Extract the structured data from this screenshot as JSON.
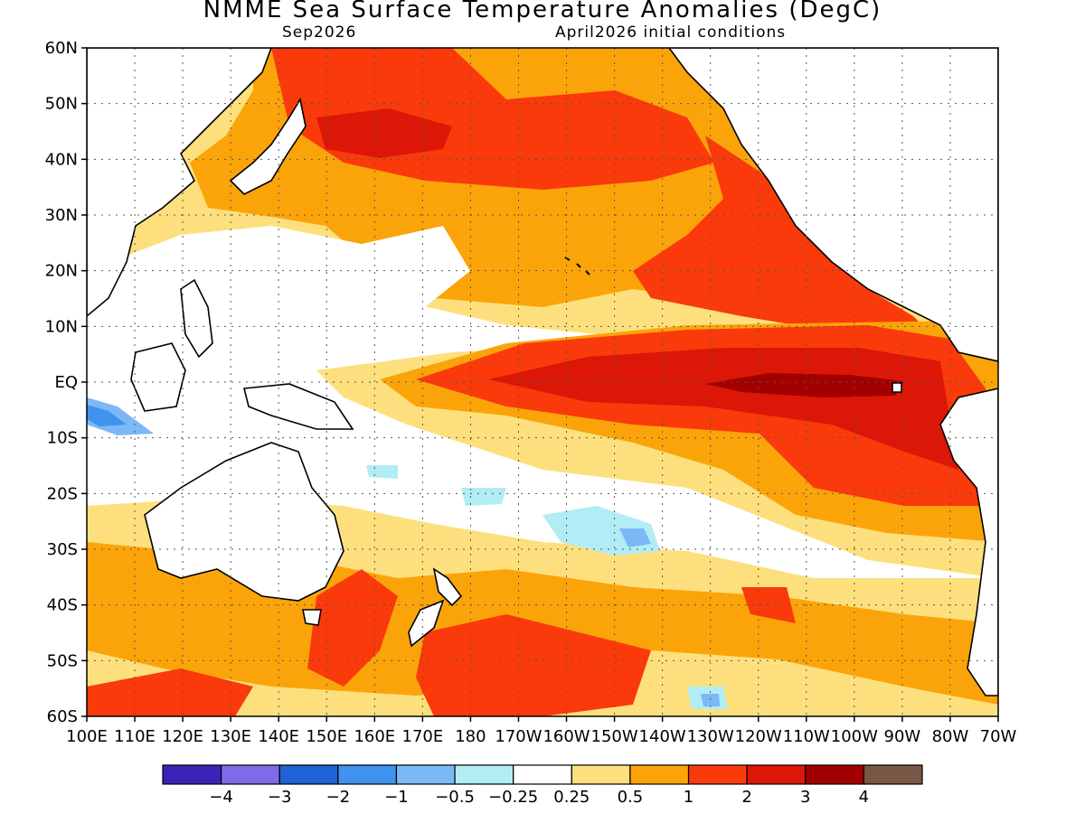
{
  "title": "NMME Sea Surface Temperature Anomalies (DegC)",
  "subtitle_left": "Sep2026",
  "subtitle_right": "April2026 initial conditions",
  "map": {
    "region": "Pacific Ocean",
    "lon_range": [
      "100E",
      "70W"
    ],
    "lat_range": [
      "60S",
      "60N"
    ],
    "lat_ticks": [
      "60N",
      "50N",
      "40N",
      "30N",
      "20N",
      "10N",
      "EQ",
      "10S",
      "20S",
      "30S",
      "40S",
      "50S",
      "60S"
    ],
    "lon_ticks": [
      "100E",
      "110E",
      "120E",
      "130E",
      "140E",
      "150E",
      "160E",
      "170E",
      "180",
      "170W",
      "160W",
      "150W",
      "140W",
      "130W",
      "120W",
      "110W",
      "100W",
      "90W",
      "80W",
      "70W"
    ],
    "grid": true
  },
  "colorbar": {
    "colors": [
      "#3b23b8",
      "#7e6be8",
      "#1f63d6",
      "#3f93ee",
      "#7cb8f5",
      "#b2ecf5",
      "#ffffff",
      "#fde07d",
      "#fba40a",
      "#fa3a0a",
      "#dc1707",
      "#a20000",
      "#7a5645"
    ],
    "labels": [
      "−4",
      "−3",
      "−2",
      "−1",
      "−0.5",
      "−0.25",
      "0.25",
      "0.5",
      "1",
      "2",
      "3",
      "4"
    ]
  }
}
